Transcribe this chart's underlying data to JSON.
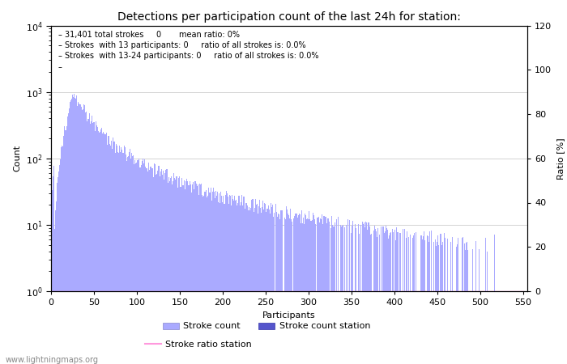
{
  "title": "Detections per participation count of the last 24h for station:",
  "xlabel": "Participants",
  "ylabel_left": "Count",
  "ylabel_right": "Ratio [%]",
  "annotation_lines": [
    "31,401 total strokes     0       mean ratio: 0%",
    "Strokes  with 13 participants: 0     ratio of all strokes is: 0.0%",
    "Strokes  with 13-24 participants: 0     ratio of all strokes is: 0.0%"
  ],
  "bar_color": "#aaaaff",
  "bar_color_station": "#5555cc",
  "ratio_line_color": "#ff99dd",
  "xlim": [
    0,
    555
  ],
  "ylim_log": [
    1,
    10000
  ],
  "ylim_right": [
    0,
    120
  ],
  "xticks": [
    0,
    50,
    100,
    150,
    200,
    250,
    300,
    350,
    400,
    450,
    500,
    550
  ],
  "yticks_right": [
    0,
    20,
    40,
    60,
    80,
    100,
    120
  ],
  "legend_labels": [
    "Stroke count",
    "Stroke count station",
    "Stroke ratio station"
  ],
  "watermark": "www.lightningmaps.org",
  "background_color": "#ffffff",
  "grid_color": "#cccccc",
  "title_fontsize": 10,
  "annotation_fontsize": 7,
  "axis_fontsize": 8,
  "tick_fontsize": 8
}
